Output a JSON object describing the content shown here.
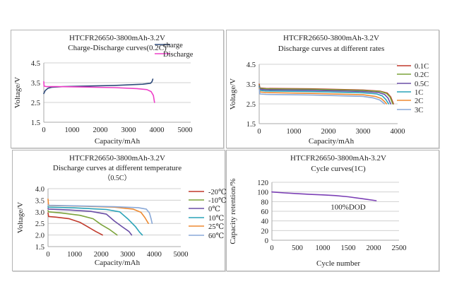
{
  "chart_data": [
    {
      "id": "p1",
      "type": "line",
      "title": "HTCFR26650-3800mAh-3.2V",
      "subtitle": "Charge-Discharge curves(0.2C)",
      "subtitle2": "",
      "xlabel": "Capacity/mAh",
      "ylabel": "Voltage/V",
      "xlim": [
        0,
        5000
      ],
      "ylim": [
        1.5,
        4.5
      ],
      "xticks": [
        0,
        1000,
        2000,
        3000,
        4000,
        5000
      ],
      "yticks": [
        1.5,
        2.5,
        3.5,
        4.5
      ],
      "yticklabels": [
        "1.5",
        "2.5",
        "3.5",
        "4.5"
      ],
      "grid": true,
      "legend": "right",
      "series": [
        {
          "name": "charge",
          "color": "#2e4a7a",
          "points": [
            [
              0,
              2.95
            ],
            [
              50,
              3.1
            ],
            [
              150,
              3.22
            ],
            [
              300,
              3.27
            ],
            [
              700,
              3.3
            ],
            [
              1500,
              3.33
            ],
            [
              2500,
              3.36
            ],
            [
              3500,
              3.42
            ],
            [
              3780,
              3.47
            ],
            [
              3830,
              3.55
            ],
            [
              3860,
              3.68
            ]
          ]
        },
        {
          "name": "Discharge",
          "color": "#ee3fc8",
          "points": [
            [
              0,
              3.55
            ],
            [
              10,
              3.33
            ],
            [
              100,
              3.3
            ],
            [
              500,
              3.3
            ],
            [
              1500,
              3.28
            ],
            [
              2500,
              3.25
            ],
            [
              3300,
              3.2
            ],
            [
              3650,
              3.15
            ],
            [
              3800,
              3.05
            ],
            [
              3880,
              2.85
            ],
            [
              3920,
              2.5
            ]
          ]
        }
      ]
    },
    {
      "id": "p2",
      "type": "line",
      "title": "HTCFR26650-3800mAh-3.2V",
      "subtitle": "Discharge curves at different rates",
      "subtitle2": "",
      "xlabel": "Capacity/mAh",
      "ylabel": "Voltage/V",
      "xlim": [
        0,
        4000
      ],
      "ylim": [
        1.5,
        4.5
      ],
      "xticks": [
        0,
        1000,
        2000,
        3000,
        4000
      ],
      "yticks": [
        1.5,
        2.5,
        3.5,
        4.5
      ],
      "yticklabels": [
        "1.5",
        "2.5",
        "3.5",
        "4.5"
      ],
      "grid": true,
      "legend": "right",
      "series": [
        {
          "name": "0.1C",
          "color": "#c0392b",
          "points": [
            [
              0,
              3.5
            ],
            [
              20,
              3.3
            ],
            [
              200,
              3.28
            ],
            [
              1500,
              3.26
            ],
            [
              3000,
              3.2
            ],
            [
              3500,
              3.14
            ],
            [
              3700,
              3.05
            ],
            [
              3800,
              2.85
            ],
            [
              3880,
              2.5
            ]
          ]
        },
        {
          "name": "0.2C",
          "color": "#7ba33a",
          "points": [
            [
              0,
              3.45
            ],
            [
              20,
              3.28
            ],
            [
              200,
              3.26
            ],
            [
              1500,
              3.24
            ],
            [
              3000,
              3.18
            ],
            [
              3500,
              3.12
            ],
            [
              3680,
              3.03
            ],
            [
              3780,
              2.85
            ],
            [
              3860,
              2.5
            ]
          ]
        },
        {
          "name": "0.5C",
          "color": "#6a4ea6",
          "points": [
            [
              0,
              3.4
            ],
            [
              20,
              3.24
            ],
            [
              200,
              3.21
            ],
            [
              1500,
              3.19
            ],
            [
              3000,
              3.13
            ],
            [
              3450,
              3.07
            ],
            [
              3620,
              2.98
            ],
            [
              3720,
              2.8
            ],
            [
              3800,
              2.5
            ]
          ]
        },
        {
          "name": "1C",
          "color": "#2aa3b8",
          "points": [
            [
              0,
              3.35
            ],
            [
              20,
              3.18
            ],
            [
              200,
              3.15
            ],
            [
              1500,
              3.12
            ],
            [
              3000,
              3.06
            ],
            [
              3400,
              3.0
            ],
            [
              3560,
              2.9
            ],
            [
              3660,
              2.72
            ],
            [
              3740,
              2.5
            ]
          ]
        },
        {
          "name": "2C",
          "color": "#ee8a32",
          "points": [
            [
              0,
              3.3
            ],
            [
              20,
              3.1
            ],
            [
              200,
              3.07
            ],
            [
              1500,
              3.03
            ],
            [
              3000,
              2.96
            ],
            [
              3350,
              2.88
            ],
            [
              3520,
              2.78
            ],
            [
              3620,
              2.62
            ],
            [
              3680,
              2.5
            ]
          ]
        },
        {
          "name": "3C",
          "color": "#8aa9d8",
          "points": [
            [
              0,
              3.25
            ],
            [
              20,
              3.0
            ],
            [
              200,
              2.98
            ],
            [
              1500,
              2.95
            ],
            [
              3000,
              2.88
            ],
            [
              3300,
              2.8
            ],
            [
              3480,
              2.7
            ],
            [
              3580,
              2.56
            ],
            [
              3620,
              2.5
            ]
          ]
        }
      ]
    },
    {
      "id": "p3",
      "type": "line",
      "title": "HTCFR26650-3800mAh-3.2V",
      "subtitle": "Discharge curves  at different temperature",
      "subtitle2": "（0.5C）",
      "xlabel": "Capacity/mAh",
      "ylabel": "Voltage/V",
      "xlim": [
        0,
        5000
      ],
      "ylim": [
        1.5,
        4.0
      ],
      "xticks": [
        0,
        1000,
        2000,
        3000,
        4000,
        5000
      ],
      "yticks": [
        1.5,
        2.0,
        2.5,
        3.0,
        3.5,
        4.0
      ],
      "yticklabels": [
        "1.5",
        "2.0",
        "2.5",
        "3.0",
        "3.5",
        "4.0"
      ],
      "grid": true,
      "legend": "right",
      "series": [
        {
          "name": "-20℃",
          "color": "#c0392b",
          "points": [
            [
              0,
              2.95
            ],
            [
              20,
              2.8
            ],
            [
              300,
              2.77
            ],
            [
              800,
              2.7
            ],
            [
              1200,
              2.55
            ],
            [
              1500,
              2.35
            ],
            [
              1800,
              2.15
            ],
            [
              2050,
              2.0
            ]
          ]
        },
        {
          "name": "-10℃",
          "color": "#7ba33a",
          "points": [
            [
              0,
              3.05
            ],
            [
              20,
              3.0
            ],
            [
              500,
              2.95
            ],
            [
              1200,
              2.85
            ],
            [
              1700,
              2.7
            ],
            [
              2000,
              2.45
            ],
            [
              2300,
              2.25
            ],
            [
              2600,
              2.0
            ]
          ]
        },
        {
          "name": "0℃",
          "color": "#6a4ea6",
          "points": [
            [
              0,
              3.15
            ],
            [
              20,
              3.12
            ],
            [
              800,
              3.08
            ],
            [
              1600,
              3.02
            ],
            [
              2200,
              2.9
            ],
            [
              2500,
              2.6
            ],
            [
              2800,
              2.35
            ],
            [
              3050,
              2.15
            ],
            [
              3150,
              2.0
            ]
          ]
        },
        {
          "name": "10℃",
          "color": "#2aa3b8",
          "points": [
            [
              0,
              3.22
            ],
            [
              20,
              3.2
            ],
            [
              1000,
              3.17
            ],
            [
              2200,
              3.1
            ],
            [
              2700,
              3.0
            ],
            [
              3000,
              2.7
            ],
            [
              3300,
              2.35
            ],
            [
              3450,
              2.12
            ],
            [
              3550,
              2.0
            ]
          ]
        },
        {
          "name": "25℃",
          "color": "#ee8a32",
          "points": [
            [
              0,
              3.55
            ],
            [
              20,
              3.27
            ],
            [
              1000,
              3.25
            ],
            [
              2500,
              3.2
            ],
            [
              3200,
              3.12
            ],
            [
              3500,
              2.98
            ],
            [
              3650,
              2.75
            ],
            [
              3780,
              2.5
            ]
          ]
        },
        {
          "name": "60℃",
          "color": "#8aa9d8",
          "points": [
            [
              0,
              3.3
            ],
            [
              20,
              3.28
            ],
            [
              1000,
              3.26
            ],
            [
              2500,
              3.22
            ],
            [
              3400,
              3.18
            ],
            [
              3700,
              3.12
            ],
            [
              3820,
              2.95
            ],
            [
              3880,
              2.7
            ],
            [
              3920,
              2.5
            ]
          ]
        }
      ]
    },
    {
      "id": "p4",
      "type": "line",
      "title": "HTCFR26650-3800mAh-3.2V",
      "subtitle": "Cycle curves(1C)",
      "subtitle2": "",
      "xlabel": "Cycle number",
      "ylabel": "Capacity retention/%",
      "xlim": [
        0,
        2500
      ],
      "ylim": [
        0,
        120
      ],
      "xticks": [
        0,
        500,
        1000,
        1500,
        2000,
        2500
      ],
      "yticks": [
        0,
        20,
        40,
        60,
        80,
        100,
        120
      ],
      "yticklabels": [
        "0",
        "20",
        "40",
        "60",
        "80",
        "100",
        "120"
      ],
      "grid": true,
      "legend": "none",
      "annotation": "100%DOD",
      "series": [
        {
          "name": "100%DOD",
          "color": "#7b3fb5",
          "points": [
            [
              0,
              100
            ],
            [
              250,
              98
            ],
            [
              500,
              96.5
            ],
            [
              750,
              95
            ],
            [
              1000,
              94
            ],
            [
              1250,
              92.5
            ],
            [
              1500,
              90
            ],
            [
              1750,
              86.5
            ],
            [
              2050,
              82
            ]
          ]
        }
      ]
    }
  ]
}
